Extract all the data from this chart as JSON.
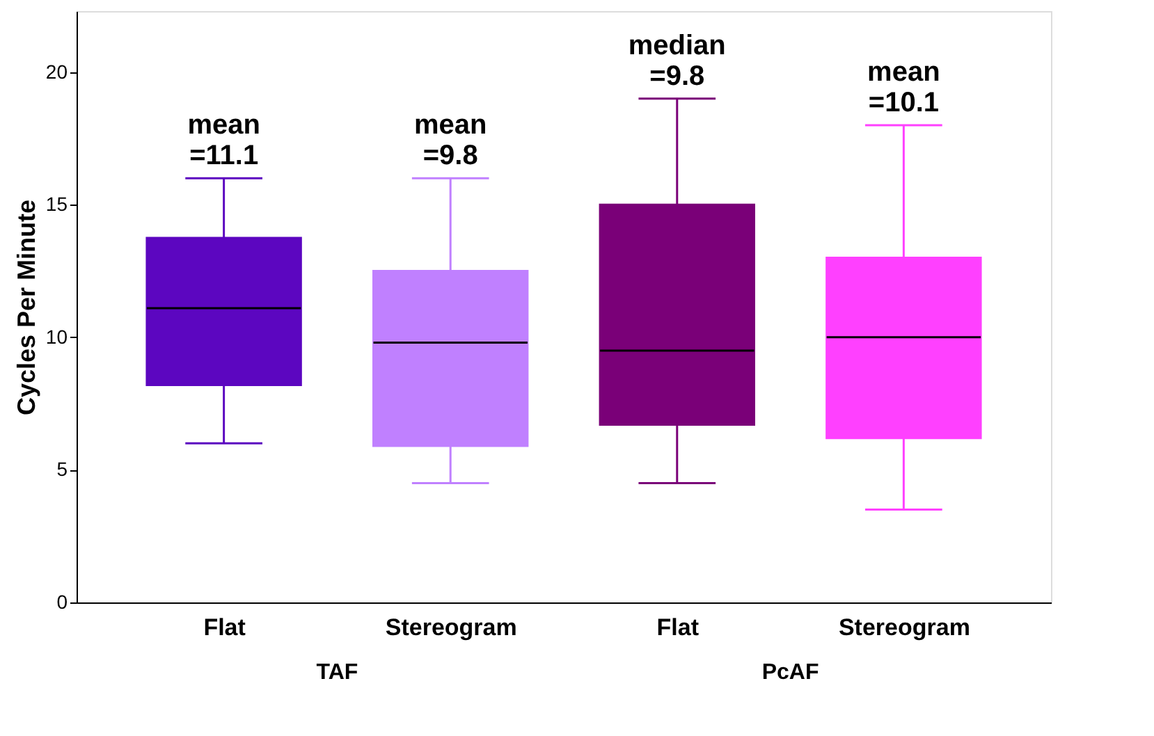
{
  "chart_data": {
    "type": "box",
    "categories": [
      "Flat",
      "Stereogram",
      "Flat",
      "Stereogram"
    ],
    "colors": [
      "#5c06c0",
      "#c080ff",
      "#7a0078",
      "#ff40ff"
    ],
    "boxes": [
      {
        "low": 6,
        "q1": 8.2,
        "median": 11.1,
        "q3": 13.75,
        "high": 16
      },
      {
        "low": 4.5,
        "q1": 5.9,
        "median": 9.8,
        "q3": 12.5,
        "high": 16
      },
      {
        "low": 4.5,
        "q1": 6.7,
        "median": 9.5,
        "q3": 15,
        "high": 19
      },
      {
        "low": 3.5,
        "q1": 6.2,
        "median": 10,
        "q3": 13,
        "high": 18
      }
    ],
    "ylabel": "Cycles Per Minute",
    "ylim": [
      0,
      22.3
    ],
    "yticks": [
      0,
      5,
      10,
      15,
      20
    ],
    "annotations": [
      "mean =11.1",
      "mean =9.8",
      "median =9.8",
      "mean =10.1",
      "TAF",
      "PcAF"
    ],
    "grid": false
  }
}
